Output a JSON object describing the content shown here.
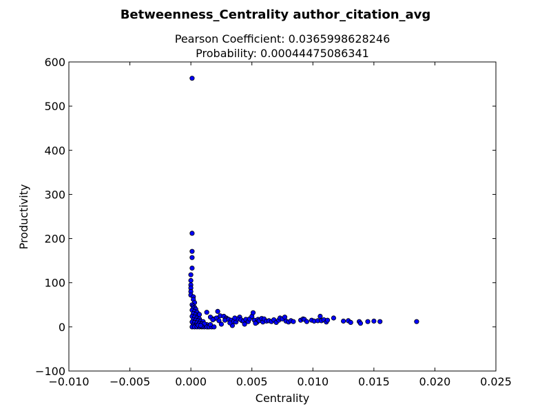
{
  "chart_data": {
    "type": "scatter",
    "title": "Betweenness_Centrality author_citation_avg",
    "subtitle_lines": [
      "Pearson Coefficient: 0.0365998628246",
      "Probability: 0.00044475086341"
    ],
    "xlabel": "Centrality",
    "ylabel": "Productivity",
    "xlim": [
      -0.01,
      0.025
    ],
    "ylim": [
      -100,
      600
    ],
    "xticks": [
      -0.01,
      -0.005,
      0.0,
      0.005,
      0.01,
      0.015,
      0.02,
      0.025
    ],
    "xtick_labels": [
      "−0.010",
      "−0.005",
      "0.000",
      "0.005",
      "0.010",
      "0.015",
      "0.020",
      "0.025"
    ],
    "yticks": [
      -100,
      0,
      100,
      200,
      300,
      400,
      500,
      600
    ],
    "ytick_labels": [
      "−100",
      "0",
      "100",
      "200",
      "300",
      "400",
      "500",
      "600"
    ],
    "grid": false,
    "marker_color": "#0000ff",
    "marker_edge": "#000000",
    "series": [
      {
        "x": [
          0.0001,
          0.0001,
          0.0001,
          0.0001,
          0.0001,
          0.0,
          0.0,
          0.0,
          0.0,
          0.0,
          0.0,
          0.0002,
          0.0002,
          0.0003,
          0.0001,
          0.0002,
          0.0003,
          0.0002,
          0.0004,
          0.0001,
          0.0003,
          0.0005,
          0.0002,
          0.0004,
          0.0006,
          0.0001,
          0.0003,
          0.0005,
          0.0007,
          0.0002,
          0.0004,
          0.0006,
          0.0008,
          0.001,
          0.0001,
          0.0003,
          0.0005,
          0.0007,
          0.0009,
          0.0011,
          0.0013,
          0.0002,
          0.0004,
          0.0006,
          0.0008,
          0.001,
          0.0012,
          0.0014,
          0.0001,
          0.0003,
          0.0005,
          0.0007,
          0.0009,
          0.0011,
          0.0013,
          0.0015,
          0.0017,
          0.0019,
          0.0007,
          0.0013,
          0.0022,
          0.0016,
          0.0019,
          0.0024,
          0.0027,
          0.0029,
          0.003,
          0.0028,
          0.0021,
          0.0023,
          0.0018,
          0.0031,
          0.0033,
          0.0035,
          0.0037,
          0.004,
          0.0038,
          0.0042,
          0.0036,
          0.0041,
          0.0043,
          0.0045,
          0.0047,
          0.0048,
          0.005,
          0.0052,
          0.0054,
          0.0051,
          0.0055,
          0.0056,
          0.0058,
          0.0059,
          0.006,
          0.0062,
          0.0064,
          0.0066,
          0.0068,
          0.007,
          0.0072,
          0.0073,
          0.0075,
          0.0077,
          0.0078,
          0.008,
          0.0082,
          0.0084,
          0.009,
          0.0092,
          0.0093,
          0.0095,
          0.0099,
          0.0101,
          0.0104,
          0.0106,
          0.0107,
          0.0109,
          0.0111,
          0.0112,
          0.0117,
          0.0125,
          0.0129,
          0.0131,
          0.0138,
          0.0139,
          0.0145,
          0.015,
          0.0155,
          0.0185,
          0.0025,
          0.0034,
          0.0044,
          0.0011,
          0.0016,
          0.0009,
          0.0006,
          0.0032,
          0.0053,
          0.0008
        ],
        "y": [
          563,
          212,
          171,
          157,
          133,
          118,
          105,
          95,
          88,
          80,
          72,
          68,
          62,
          55,
          50,
          47,
          44,
          42,
          40,
          38,
          35,
          33,
          30,
          28,
          26,
          24,
          22,
          20,
          18,
          16,
          15,
          14,
          13,
          12,
          11,
          10,
          9,
          8,
          7,
          6,
          5,
          4,
          3,
          2,
          2,
          1,
          1,
          0,
          0,
          0,
          0,
          0,
          0,
          0,
          0,
          0,
          0,
          0,
          28,
          33,
          35,
          22,
          18,
          25,
          24,
          20,
          18,
          15,
          20,
          14,
          16,
          17,
          15,
          12,
          11,
          22,
          18,
          14,
          20,
          16,
          13,
          17,
          12,
          18,
          24,
          15,
          10,
          32,
          17,
          14,
          19,
          11,
          18,
          13,
          14,
          12,
          16,
          10,
          15,
          20,
          18,
          22,
          13,
          11,
          14,
          12,
          15,
          18,
          17,
          12,
          15,
          13,
          14,
          24,
          14,
          16,
          11,
          15,
          20,
          13,
          14,
          10,
          12,
          8,
          12,
          13,
          12,
          12,
          6,
          3,
          6,
          7,
          5,
          1,
          4,
          9,
          8,
          3
        ]
      }
    ]
  }
}
